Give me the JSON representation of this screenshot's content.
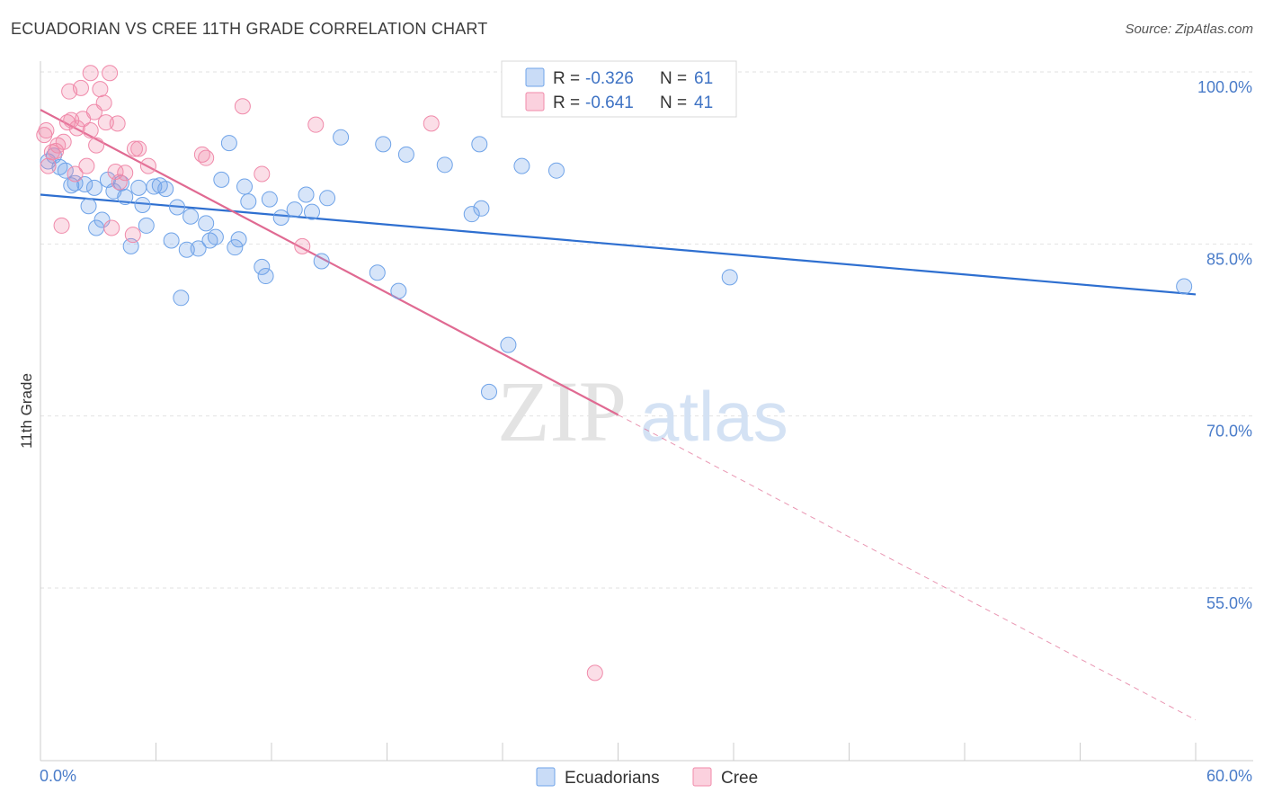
{
  "header": {
    "title": "ECUADORIAN VS CREE 11TH GRADE CORRELATION CHART",
    "source": "Source: ZipAtlas.com"
  },
  "watermark": {
    "zip": "ZIP",
    "atlas": "atlas"
  },
  "legend": {
    "rows": [
      {
        "r_label": "R =",
        "r_value": "-0.326",
        "n_label": "N =",
        "n_value": "61",
        "color": "#6fa3e8"
      },
      {
        "r_label": "R =",
        "r_value": "-0.641",
        "n_label": "N =",
        "n_value": "41",
        "color": "#f08aaa"
      }
    ]
  },
  "bottom_legend": [
    {
      "label": "Ecuadorians",
      "color": "#6fa3e8"
    },
    {
      "label": "Cree",
      "color": "#f08aaa"
    }
  ],
  "chart_data": {
    "type": "scatter",
    "title": "ECUADORIAN VS CREE 11TH GRADE CORRELATION CHART",
    "xlabel": "",
    "ylabel": "11th Grade",
    "xlim": [
      0,
      60
    ],
    "ylim": [
      39.5,
      101.5
    ],
    "x_tick_labels": [
      {
        "value": 0,
        "label": "0.0%"
      },
      {
        "value": 60,
        "label": "60.0%"
      }
    ],
    "y_tick_labels": [
      {
        "value": 100,
        "label": "100.0%"
      },
      {
        "value": 85,
        "label": "85.0%"
      },
      {
        "value": 70,
        "label": "70.0%"
      },
      {
        "value": 55,
        "label": "55.0%"
      }
    ],
    "grid": "horizontal dashed",
    "series": [
      {
        "name": "Ecuadorians",
        "color": "#6fa3e8",
        "trend": {
          "x": [
            0,
            60
          ],
          "y": [
            89.3,
            80.6
          ],
          "style": "solid"
        },
        "points": [
          [
            0.4,
            92.2
          ],
          [
            0.7,
            92.7
          ],
          [
            1.0,
            91.7
          ],
          [
            1.3,
            91.4
          ],
          [
            1.6,
            90.1
          ],
          [
            1.8,
            90.3
          ],
          [
            2.3,
            90.2
          ],
          [
            2.5,
            88.3
          ],
          [
            2.8,
            89.9
          ],
          [
            2.9,
            86.4
          ],
          [
            3.2,
            87.1
          ],
          [
            3.5,
            90.6
          ],
          [
            3.8,
            89.6
          ],
          [
            4.2,
            90.3
          ],
          [
            4.4,
            89.1
          ],
          [
            4.7,
            84.8
          ],
          [
            5.1,
            89.9
          ],
          [
            5.3,
            88.4
          ],
          [
            5.5,
            86.6
          ],
          [
            5.9,
            90.0
          ],
          [
            6.2,
            90.1
          ],
          [
            6.5,
            89.8
          ],
          [
            6.8,
            85.3
          ],
          [
            7.1,
            88.2
          ],
          [
            7.3,
            80.3
          ],
          [
            7.6,
            84.5
          ],
          [
            7.8,
            87.4
          ],
          [
            8.2,
            84.6
          ],
          [
            8.6,
            86.8
          ],
          [
            8.8,
            85.3
          ],
          [
            9.1,
            85.6
          ],
          [
            9.4,
            90.6
          ],
          [
            9.8,
            93.8
          ],
          [
            10.1,
            84.7
          ],
          [
            10.3,
            85.4
          ],
          [
            10.6,
            90.0
          ],
          [
            10.8,
            88.7
          ],
          [
            11.5,
            83.0
          ],
          [
            11.7,
            82.2
          ],
          [
            11.9,
            88.9
          ],
          [
            12.5,
            87.3
          ],
          [
            13.2,
            88.0
          ],
          [
            13.8,
            89.3
          ],
          [
            14.1,
            87.8
          ],
          [
            14.6,
            83.5
          ],
          [
            14.9,
            89.0
          ],
          [
            15.6,
            94.3
          ],
          [
            17.5,
            82.5
          ],
          [
            17.8,
            93.7
          ],
          [
            18.6,
            80.9
          ],
          [
            19.0,
            92.8
          ],
          [
            21.0,
            91.9
          ],
          [
            22.4,
            87.6
          ],
          [
            22.8,
            93.7
          ],
          [
            22.9,
            88.1
          ],
          [
            23.3,
            72.1
          ],
          [
            24.3,
            76.2
          ],
          [
            25.0,
            91.8
          ],
          [
            26.8,
            91.4
          ],
          [
            35.8,
            82.1
          ],
          [
            59.4,
            81.3
          ]
        ]
      },
      {
        "name": "Cree",
        "color": "#f08aaa",
        "trend": {
          "x": [
            0,
            30
          ],
          "y": [
            96.7,
            70.1
          ],
          "style": "solid",
          "extension": {
            "x": [
              30,
              60
            ],
            "y": [
              70.1,
              43.5
            ],
            "style": "dashed"
          }
        },
        "points": [
          [
            0.2,
            94.5
          ],
          [
            0.3,
            94.9
          ],
          [
            0.4,
            91.8
          ],
          [
            0.6,
            93.0
          ],
          [
            0.8,
            93.1
          ],
          [
            0.9,
            93.6
          ],
          [
            1.1,
            86.6
          ],
          [
            1.2,
            93.9
          ],
          [
            1.4,
            95.6
          ],
          [
            1.5,
            98.3
          ],
          [
            1.6,
            95.8
          ],
          [
            1.8,
            91.1
          ],
          [
            1.9,
            95.1
          ],
          [
            2.1,
            98.6
          ],
          [
            2.2,
            95.9
          ],
          [
            2.4,
            91.8
          ],
          [
            2.6,
            94.9
          ],
          [
            2.8,
            96.5
          ],
          [
            2.9,
            93.6
          ],
          [
            3.1,
            98.5
          ],
          [
            3.3,
            97.3
          ],
          [
            3.4,
            95.6
          ],
          [
            3.6,
            99.9
          ],
          [
            3.7,
            86.4
          ],
          [
            3.9,
            91.3
          ],
          [
            4.0,
            95.5
          ],
          [
            4.1,
            90.4
          ],
          [
            4.4,
            91.2
          ],
          [
            4.8,
            85.8
          ],
          [
            4.9,
            93.3
          ],
          [
            5.1,
            93.3
          ],
          [
            5.6,
            91.8
          ],
          [
            2.6,
            99.9
          ],
          [
            8.4,
            92.8
          ],
          [
            8.6,
            92.5
          ],
          [
            10.5,
            97.0
          ],
          [
            11.5,
            91.1
          ],
          [
            13.6,
            84.8
          ],
          [
            14.3,
            95.4
          ],
          [
            20.3,
            95.5
          ],
          [
            28.8,
            47.6
          ]
        ]
      }
    ]
  }
}
